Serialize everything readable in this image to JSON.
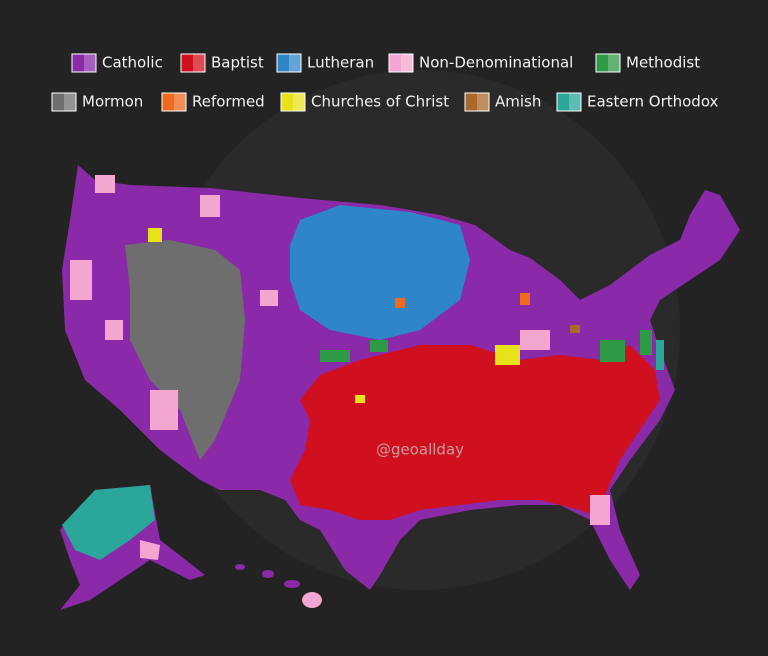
{
  "legend": {
    "items": [
      {
        "label": "Catholic",
        "color": "#8a2aa8"
      },
      {
        "label": "Baptist",
        "color": "#d0101e"
      },
      {
        "label": "Lutheran",
        "color": "#2f86c6"
      },
      {
        "label": "Non-Denominational",
        "color": "#f2a6d0"
      },
      {
        "label": "Methodist",
        "color": "#2e9a45"
      },
      {
        "label": "Mormon",
        "color": "#6e6e6e"
      },
      {
        "label": "Reformed",
        "color": "#ee6a1e"
      },
      {
        "label": "Churches of Christ",
        "color": "#e8e21a"
      },
      {
        "label": "Amish",
        "color": "#a8692a"
      },
      {
        "label": "Eastern Orthodox",
        "color": "#2aa69a"
      }
    ]
  },
  "watermark": "@geoallday"
}
